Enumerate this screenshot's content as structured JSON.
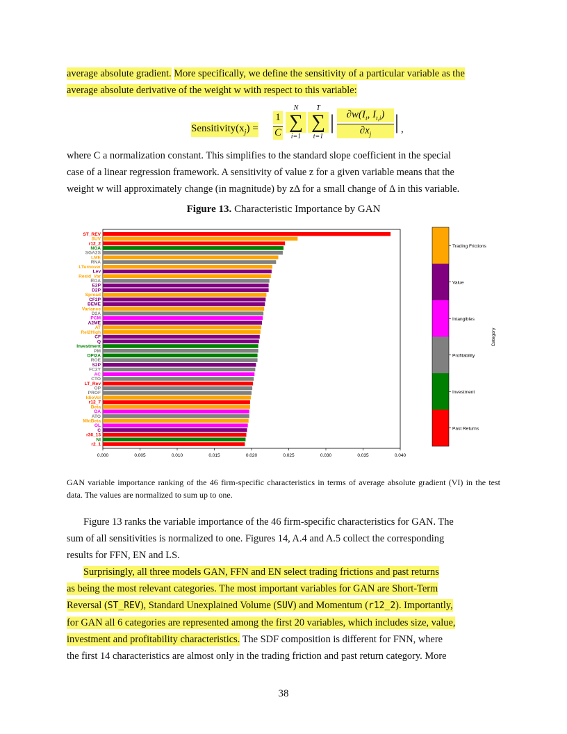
{
  "top_para": {
    "line1_hl_a": "average absolute gradient.",
    "line1_hl_b": "More specifically, we define the sensitivity of a particular variable as the",
    "line2_hl": "average absolute derivative of the weight w with respect to this variable:"
  },
  "equation": {
    "lhs": "Sensitivity(x",
    "lhs_sub": "j",
    "lhs_end": ") =",
    "frac_num": "1",
    "frac_den": "C",
    "sum1_top": "N",
    "sum1_bot": "i=1",
    "sum2_top": "T",
    "sum2_bot": "t=1",
    "deriv_num": "∂w(I",
    "deriv_num_sub1": "t",
    "deriv_num_mid": ", I",
    "deriv_num_sub2": "t,i",
    "deriv_num_end": ")",
    "deriv_den": "∂x",
    "deriv_den_sub": "j",
    "trail": ","
  },
  "middle_para": {
    "line1": "where C a normalization constant. This simplifies to the standard slope coefficient in the special",
    "line2": "case of a linear regression framework. A sensitivity of value z for a given variable means that the",
    "line3": "weight w will approximately change (in magnitude) by zΔ for a small change of Δ in this variable."
  },
  "figure": {
    "label": "Figure 13.",
    "title": "Characteristic Importance by GAN"
  },
  "chart_data": {
    "type": "bar",
    "orientation": "horizontal",
    "xlim": [
      0,
      0.04
    ],
    "xticks": [
      "0.000",
      "0.005",
      "0.010",
      "0.015",
      "0.020",
      "0.025",
      "0.030",
      "0.035",
      "0.040"
    ],
    "categories_legend": [
      {
        "name": "Trading Frictions",
        "color": "#ffa500"
      },
      {
        "name": "Value",
        "color": "#800080"
      },
      {
        "name": "Intangibles",
        "color": "#ff00ff"
      },
      {
        "name": "Profitability",
        "color": "#808080"
      },
      {
        "name": "Investment",
        "color": "#008000"
      },
      {
        "name": "Past Returns",
        "color": "#ff0000"
      }
    ],
    "colorbar_label": "Category",
    "bars": [
      {
        "label": "ST_REV",
        "value": 0.0387,
        "color": "#ff0000"
      },
      {
        "label": "SUV",
        "value": 0.0262,
        "color": "#ffa500"
      },
      {
        "label": "r12_2",
        "value": 0.0245,
        "color": "#ff0000"
      },
      {
        "label": "NOA",
        "value": 0.0243,
        "color": "#008000"
      },
      {
        "label": "SGA2S",
        "value": 0.0242,
        "color": "#808080"
      },
      {
        "label": "LME",
        "value": 0.0236,
        "color": "#ffa500"
      },
      {
        "label": "RNA",
        "value": 0.0233,
        "color": "#808080"
      },
      {
        "label": "LTurnover",
        "value": 0.0228,
        "color": "#ffa500"
      },
      {
        "label": "Lev",
        "value": 0.0227,
        "color": "#800080"
      },
      {
        "label": "Resid_Var",
        "value": 0.0226,
        "color": "#ffa500"
      },
      {
        "label": "ROA",
        "value": 0.0224,
        "color": "#808080"
      },
      {
        "label": "E2P",
        "value": 0.0223,
        "color": "#800080"
      },
      {
        "label": "D2P",
        "value": 0.0223,
        "color": "#800080"
      },
      {
        "label": "Spread",
        "value": 0.022,
        "color": "#ffa500"
      },
      {
        "label": "CF2P",
        "value": 0.0219,
        "color": "#800080"
      },
      {
        "label": "BEME",
        "value": 0.0218,
        "color": "#800080"
      },
      {
        "label": "Variance",
        "value": 0.0217,
        "color": "#ffa500"
      },
      {
        "label": "D2A",
        "value": 0.0216,
        "color": "#808080"
      },
      {
        "label": "PCM",
        "value": 0.0215,
        "color": "#ff00ff"
      },
      {
        "label": "A2ME",
        "value": 0.0214,
        "color": "#800080"
      },
      {
        "label": "AT",
        "value": 0.0213,
        "color": "#ffa500"
      },
      {
        "label": "Rel2High",
        "value": 0.0212,
        "color": "#ffa500"
      },
      {
        "label": "CF",
        "value": 0.0211,
        "color": "#800080"
      },
      {
        "label": "Q",
        "value": 0.021,
        "color": "#800080"
      },
      {
        "label": "Investment",
        "value": 0.0209,
        "color": "#008000"
      },
      {
        "label": "PM",
        "value": 0.0209,
        "color": "#808080"
      },
      {
        "label": "DPI2A",
        "value": 0.0208,
        "color": "#008000"
      },
      {
        "label": "ROE",
        "value": 0.0208,
        "color": "#808080"
      },
      {
        "label": "S2P",
        "value": 0.0206,
        "color": "#800080"
      },
      {
        "label": "FC2Y",
        "value": 0.0205,
        "color": "#808080"
      },
      {
        "label": "AC",
        "value": 0.0204,
        "color": "#ff00ff"
      },
      {
        "label": "CTO",
        "value": 0.0203,
        "color": "#808080"
      },
      {
        "label": "LT_Rev",
        "value": 0.0202,
        "color": "#ff0000"
      },
      {
        "label": "OP",
        "value": 0.0201,
        "color": "#808080"
      },
      {
        "label": "PROF",
        "value": 0.02,
        "color": "#808080"
      },
      {
        "label": "IdioVol",
        "value": 0.0199,
        "color": "#ffa500"
      },
      {
        "label": "r12_7",
        "value": 0.0198,
        "color": "#ff0000"
      },
      {
        "label": "Beta",
        "value": 0.0198,
        "color": "#ffa500"
      },
      {
        "label": "OA",
        "value": 0.0197,
        "color": "#ff00ff"
      },
      {
        "label": "ATO",
        "value": 0.0197,
        "color": "#808080"
      },
      {
        "label": "MktBeta",
        "value": 0.0196,
        "color": "#ffa500"
      },
      {
        "label": "OL",
        "value": 0.0195,
        "color": "#ff00ff"
      },
      {
        "label": "C",
        "value": 0.0194,
        "color": "#800080"
      },
      {
        "label": "r36_13",
        "value": 0.0193,
        "color": "#ff0000"
      },
      {
        "label": "NI",
        "value": 0.0192,
        "color": "#008000"
      },
      {
        "label": "r2_1",
        "value": 0.0191,
        "color": "#ff0000"
      }
    ]
  },
  "caption": "GAN variable importance ranking of the 46 firm-specific characteristics in terms of average absolute gradient (VI) in the test data. The values are normalized to sum up to one.",
  "bottom_para1": {
    "line1": "Figure 13 ranks the variable importance of the 46 firm-specific characteristics for GAN. The",
    "line2": "sum of all sensitivities is normalized to one. Figures 14, A.4 and A.5 collect the corresponding",
    "line3": "results for FFN, EN and LS."
  },
  "bottom_para2": {
    "l1": "Surprisingly, all three models GAN, FFN and EN select trading frictions and past returns",
    "l2": "as being the most relevant categories. The most important variables for GAN are Short-Term",
    "l3a": "Reversal (",
    "l3b": "ST_REV",
    "l3c": "), Standard Unexplained Volume (",
    "l3d": "SUV",
    "l3e": ") and Momentum (",
    "l3f": "r12_2",
    "l3g": "). Importantly,",
    "l4": "for GAN all 6 categories are represented among the first 20 variables, which includes size, value,",
    "l5_hl": "investment and profitability characteristics.",
    "l5_rest": " The SDF composition is different for FNN, where",
    "l6": "the first 14 characteristics are almost only in the trading friction and past return category. More"
  },
  "page_number": "38"
}
